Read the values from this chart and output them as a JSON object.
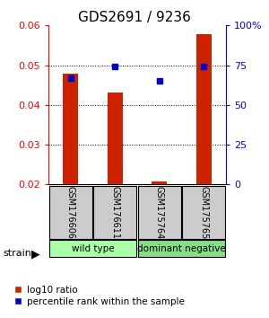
{
  "title": "GDS2691 / 9236",
  "samples": [
    "GSM176606",
    "GSM176611",
    "GSM175764",
    "GSM175765"
  ],
  "log10_values": [
    0.0479,
    0.0432,
    0.0207,
    0.0578
  ],
  "percentile_values": [
    67,
    74,
    65,
    74
  ],
  "bar_bottom": 0.02,
  "ylim_left": [
    0.02,
    0.06
  ],
  "ylim_right": [
    0,
    100
  ],
  "yticks_left": [
    0.02,
    0.03,
    0.04,
    0.05,
    0.06
  ],
  "yticks_right": [
    0,
    25,
    50,
    75,
    100
  ],
  "ytick_labels_right": [
    "0",
    "25",
    "50",
    "75",
    "100%"
  ],
  "groups": [
    {
      "label": "wild type",
      "indices": [
        0,
        1
      ],
      "color": "#aaffaa"
    },
    {
      "label": "dominant negative",
      "indices": [
        2,
        3
      ],
      "color": "#88dd88"
    }
  ],
  "bar_color": "#cc2200",
  "dot_color": "#0000cc",
  "strain_label": "strain",
  "legend_bar_label": "log10 ratio",
  "legend_dot_label": "percentile rank within the sample",
  "background_color": "#ffffff"
}
